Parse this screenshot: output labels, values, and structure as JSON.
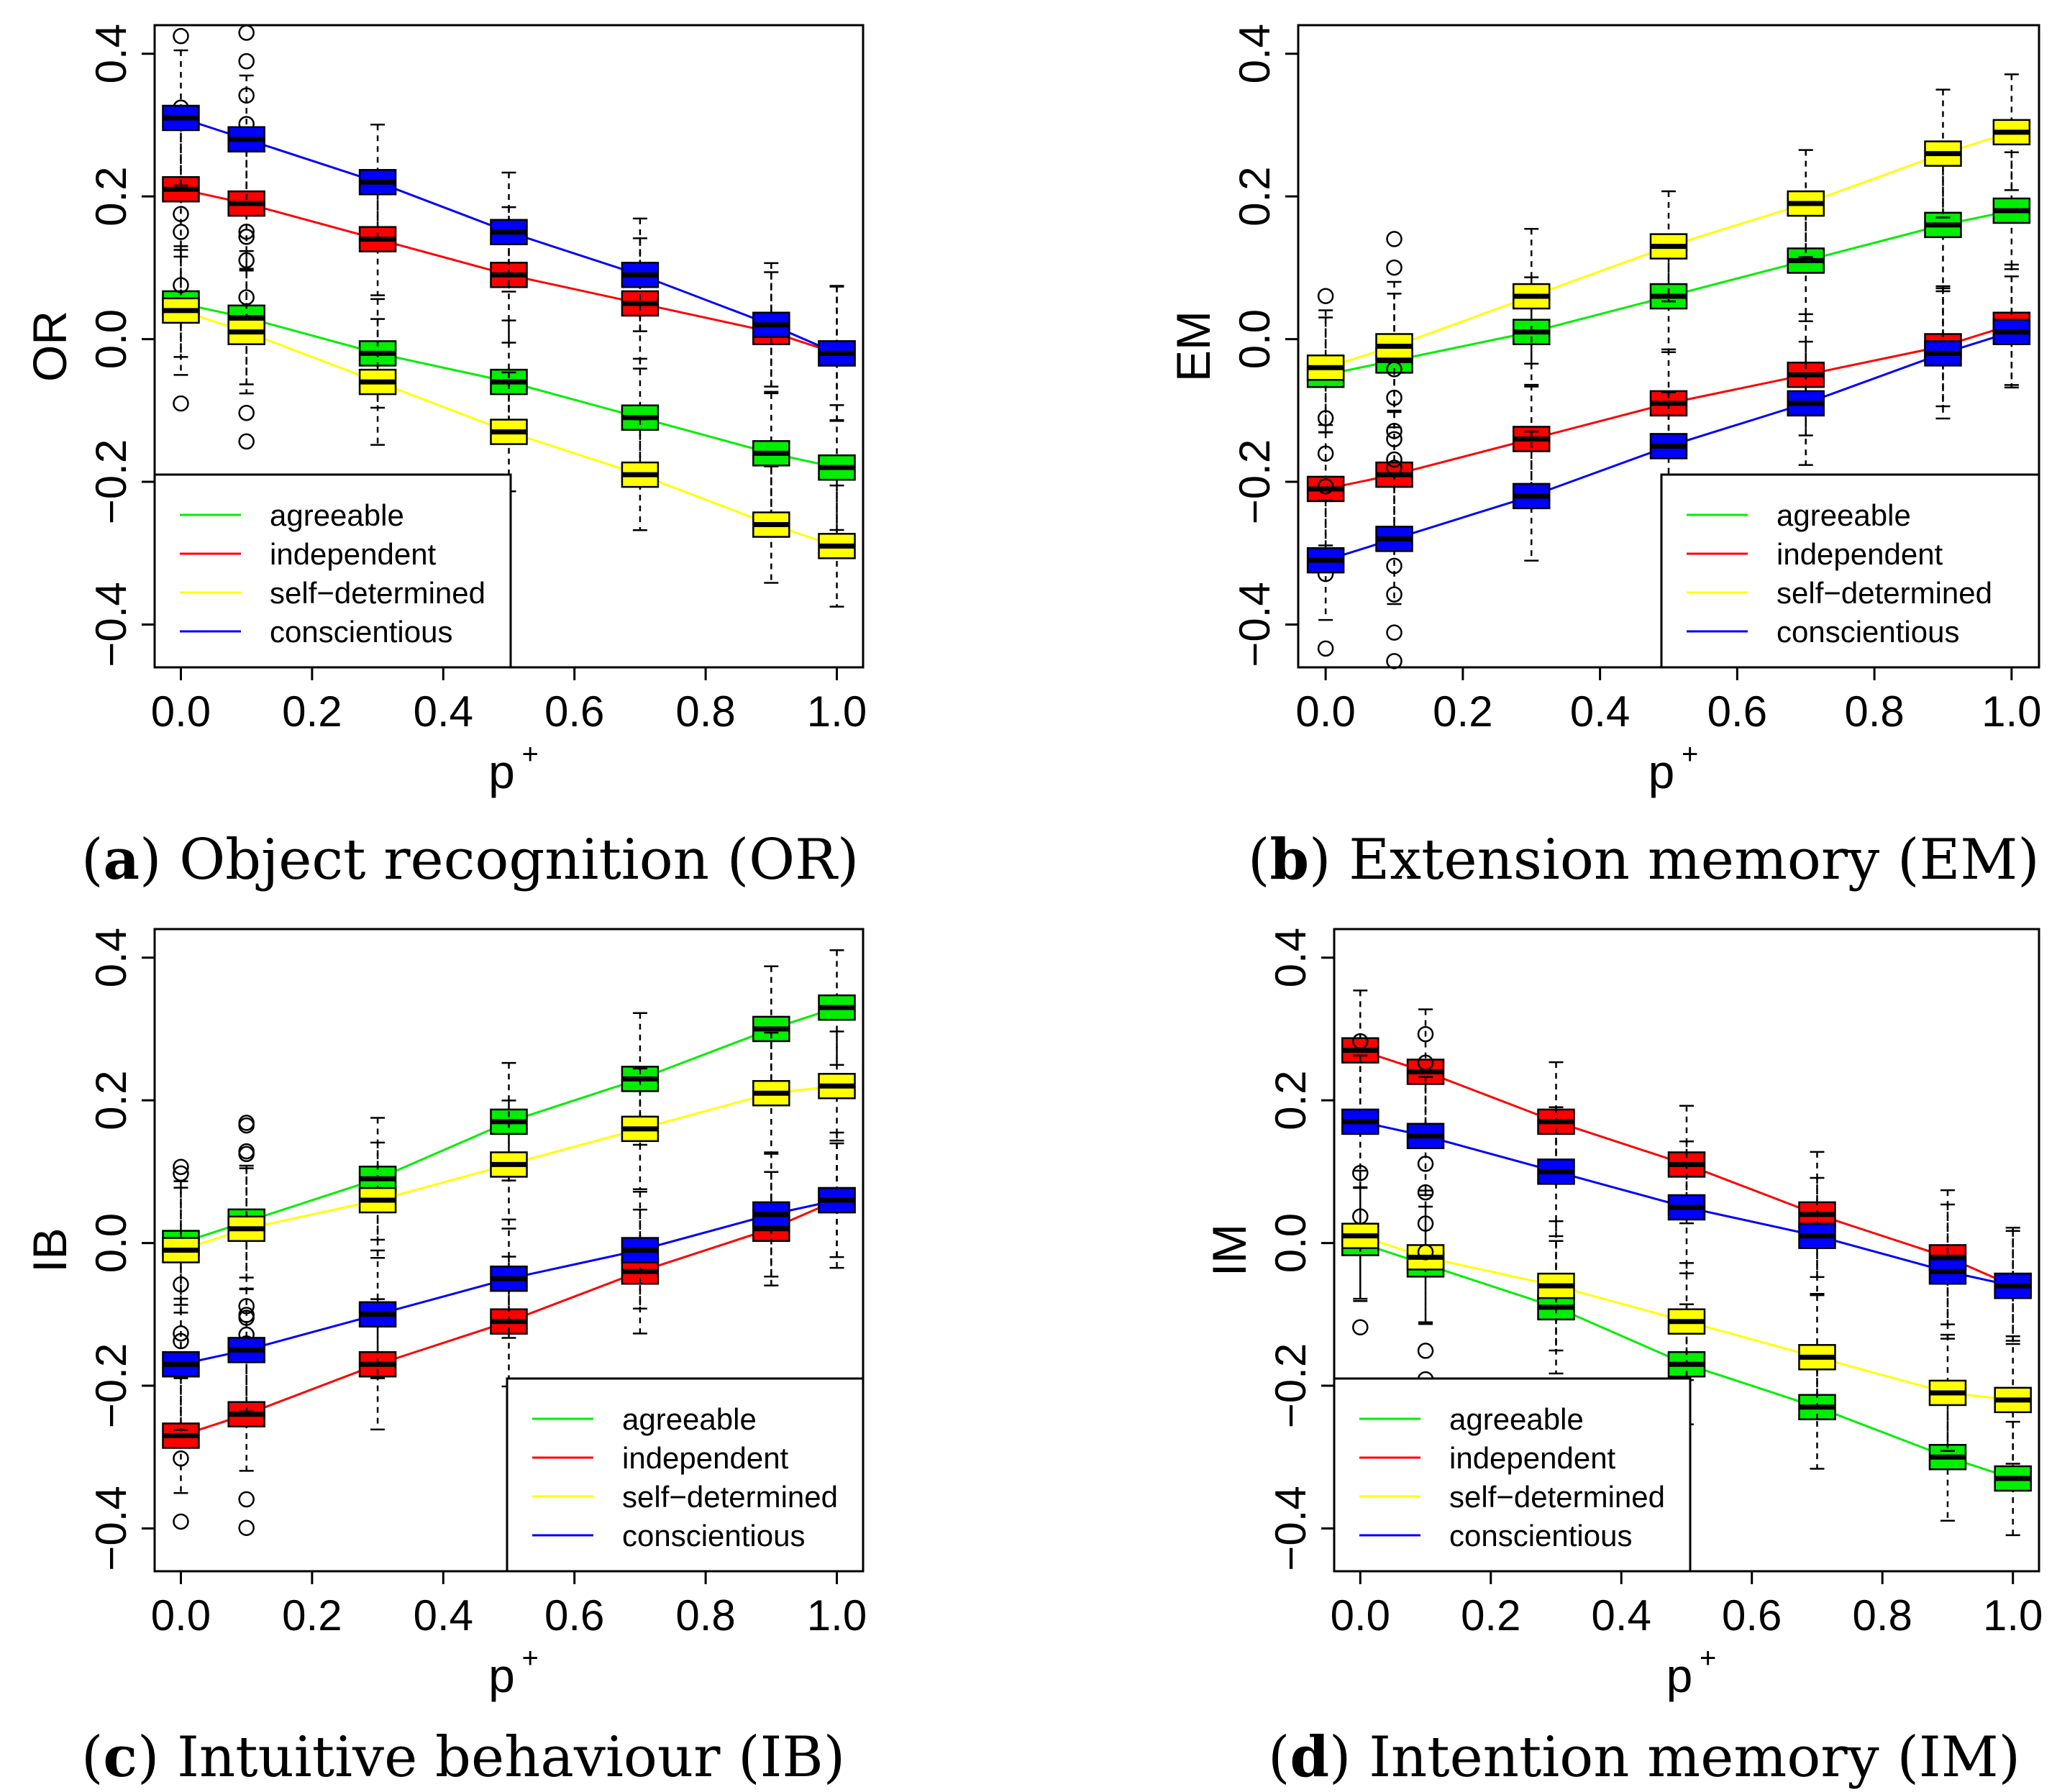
{
  "chart_data": [
    {
      "type": "box",
      "panel": "a",
      "caption_letter": "a",
      "caption_text": "Object recognition (OR)",
      "ylabel": "OR",
      "xlabel": "p",
      "xlabel_sup": "+",
      "xlim": [
        -0.04,
        1.04
      ],
      "ylim": [
        -0.46,
        0.44
      ],
      "x_ticks": [
        "0.0",
        "0.2",
        "0.4",
        "0.6",
        "0.8",
        "1.0"
      ],
      "y_ticks": [
        "−0.4",
        "−0.2",
        "0.0",
        "0.2",
        "0.4"
      ],
      "x": [
        0.0,
        0.1,
        0.3,
        0.5,
        0.7,
        0.9,
        1.0
      ],
      "legend": {
        "position": "bottom-left",
        "entries": [
          "agreeable",
          "independent",
          "self−determined",
          "conscientious"
        ]
      },
      "series": [
        {
          "name": "agreeable",
          "color": "#00ee00",
          "medians": [
            0.05,
            0.03,
            -0.02,
            -0.06,
            -0.11,
            -0.16,
            -0.18
          ]
        },
        {
          "name": "independent",
          "color": "#ff0000",
          "medians": [
            0.21,
            0.19,
            0.14,
            0.09,
            0.05,
            0.01,
            -0.02
          ]
        },
        {
          "name": "self−determined",
          "color": "#ffff00",
          "medians": [
            0.04,
            0.01,
            -0.06,
            -0.13,
            -0.19,
            -0.26,
            -0.29
          ]
        },
        {
          "name": "conscientious",
          "color": "#0000ff",
          "medians": [
            0.31,
            0.28,
            0.22,
            0.15,
            0.09,
            0.02,
            -0.02
          ]
        }
      ]
    },
    {
      "type": "box",
      "panel": "b",
      "caption_letter": "b",
      "caption_text": "Extension memory (EM)",
      "ylabel": "EM",
      "xlabel": "p",
      "xlabel_sup": "+",
      "xlim": [
        -0.04,
        1.04
      ],
      "ylim": [
        -0.46,
        0.44
      ],
      "x_ticks": [
        "0.0",
        "0.2",
        "0.4",
        "0.6",
        "0.8",
        "1.0"
      ],
      "y_ticks": [
        "−0.4",
        "−0.2",
        "0.0",
        "0.2",
        "0.4"
      ],
      "x": [
        0.0,
        0.1,
        0.3,
        0.5,
        0.7,
        0.9,
        1.0
      ],
      "legend": {
        "position": "bottom-right",
        "entries": [
          "agreeable",
          "independent",
          "self−determined",
          "conscientious"
        ]
      },
      "series": [
        {
          "name": "agreeable",
          "color": "#00ee00",
          "medians": [
            -0.05,
            -0.03,
            0.01,
            0.06,
            0.11,
            0.16,
            0.18
          ]
        },
        {
          "name": "independent",
          "color": "#ff0000",
          "medians": [
            -0.21,
            -0.19,
            -0.14,
            -0.09,
            -0.05,
            -0.01,
            0.02
          ]
        },
        {
          "name": "self−determined",
          "color": "#ffff00",
          "medians": [
            -0.04,
            -0.01,
            0.06,
            0.13,
            0.19,
            0.26,
            0.29
          ]
        },
        {
          "name": "conscientious",
          "color": "#0000ff",
          "medians": [
            -0.31,
            -0.28,
            -0.22,
            -0.15,
            -0.09,
            -0.02,
            0.01
          ]
        }
      ]
    },
    {
      "type": "box",
      "panel": "c",
      "caption_letter": "c",
      "caption_text": "Intuitive behaviour (IB)",
      "ylabel": "IB",
      "xlabel": "p",
      "xlabel_sup": "+",
      "xlim": [
        -0.04,
        1.04
      ],
      "ylim": [
        -0.46,
        0.44
      ],
      "x_ticks": [
        "0.0",
        "0.2",
        "0.4",
        "0.6",
        "0.8",
        "1.0"
      ],
      "y_ticks": [
        "−0.4",
        "−0.2",
        "0.0",
        "0.2",
        "0.4"
      ],
      "x": [
        0.0,
        0.1,
        0.3,
        0.5,
        0.7,
        0.9,
        1.0
      ],
      "legend": {
        "position": "bottom-right",
        "entries": [
          "agreeable",
          "independent",
          "self−determined",
          "conscientious"
        ]
      },
      "series": [
        {
          "name": "agreeable",
          "color": "#00ee00",
          "medians": [
            0.0,
            0.03,
            0.09,
            0.17,
            0.23,
            0.3,
            0.33
          ]
        },
        {
          "name": "independent",
          "color": "#ff0000",
          "medians": [
            -0.27,
            -0.24,
            -0.17,
            -0.11,
            -0.04,
            0.02,
            0.06
          ]
        },
        {
          "name": "self−determined",
          "color": "#ffff00",
          "medians": [
            -0.01,
            0.02,
            0.06,
            0.11,
            0.16,
            0.21,
            0.22
          ]
        },
        {
          "name": "conscientious",
          "color": "#0000ff",
          "medians": [
            -0.17,
            -0.15,
            -0.1,
            -0.05,
            -0.01,
            0.04,
            0.06
          ]
        }
      ]
    },
    {
      "type": "box",
      "panel": "d",
      "caption_letter": "d",
      "caption_text": "Intention memory (IM)",
      "ylabel": "IM",
      "xlabel": "p",
      "xlabel_sup": "+",
      "xlim": [
        -0.04,
        1.04
      ],
      "ylim": [
        -0.46,
        0.44
      ],
      "x_ticks": [
        "0.0",
        "0.2",
        "0.4",
        "0.6",
        "0.8",
        "1.0"
      ],
      "y_ticks": [
        "−0.4",
        "−0.2",
        "0.0",
        "0.2",
        "0.4"
      ],
      "x": [
        0.0,
        0.1,
        0.3,
        0.5,
        0.7,
        0.9,
        1.0
      ],
      "legend": {
        "position": "bottom-left",
        "entries": [
          "agreeable",
          "independent",
          "self−determined",
          "conscientious"
        ]
      },
      "series": [
        {
          "name": "agreeable",
          "color": "#00ee00",
          "medians": [
            0.0,
            -0.03,
            -0.09,
            -0.17,
            -0.23,
            -0.3,
            -0.33
          ]
        },
        {
          "name": "independent",
          "color": "#ff0000",
          "medians": [
            0.27,
            0.24,
            0.17,
            0.11,
            0.04,
            -0.02,
            -0.06
          ]
        },
        {
          "name": "self−determined",
          "color": "#ffff00",
          "medians": [
            0.01,
            -0.02,
            -0.06,
            -0.11,
            -0.16,
            -0.21,
            -0.22
          ]
        },
        {
          "name": "conscientious",
          "color": "#0000ff",
          "medians": [
            0.17,
            0.15,
            0.1,
            0.05,
            0.01,
            -0.04,
            -0.06
          ]
        }
      ]
    }
  ]
}
